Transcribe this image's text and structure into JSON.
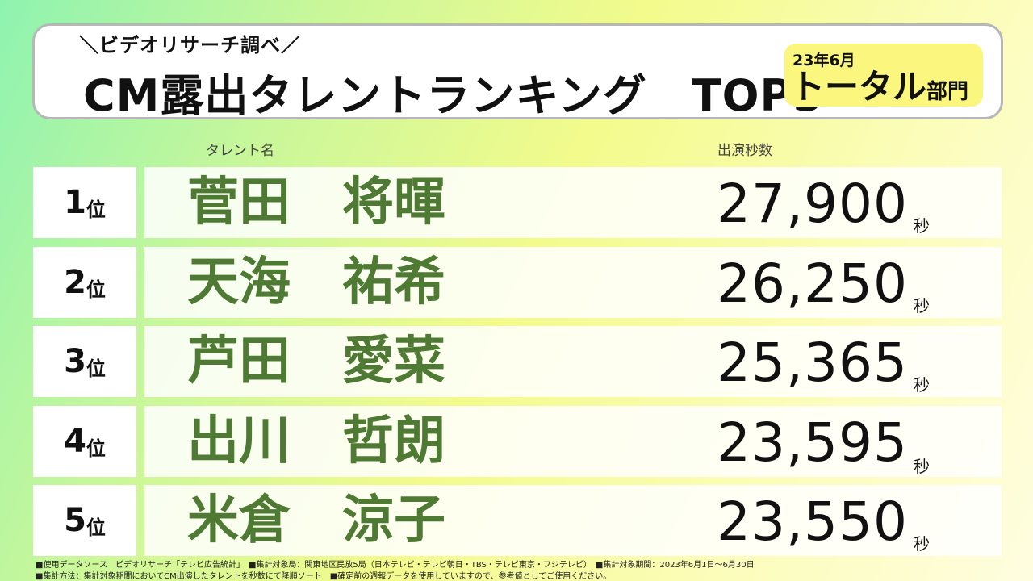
{
  "header": {
    "subtitle": "＼ビデオリサーチ調べ／",
    "title": "CM露出タレントランキング　TOP5",
    "period": "23年6月",
    "category_main": "トータル",
    "category_suffix": "部門"
  },
  "columns": {
    "name": "タレント名",
    "seconds": "出演秒数"
  },
  "rows": [
    {
      "rank": "1",
      "rank_unit": "位",
      "name": "菅田　将暉",
      "seconds": "27,900",
      "unit": "秒"
    },
    {
      "rank": "2",
      "rank_unit": "位",
      "name": "天海　祐希",
      "seconds": "26,250",
      "unit": "秒"
    },
    {
      "rank": "3",
      "rank_unit": "位",
      "name": "芦田　愛菜",
      "seconds": "25,365",
      "unit": "秒"
    },
    {
      "rank": "4",
      "rank_unit": "位",
      "name": "出川　哲朗",
      "seconds": "23,595",
      "unit": "秒"
    },
    {
      "rank": "5",
      "rank_unit": "位",
      "name": "米倉　涼子",
      "seconds": "23,550",
      "unit": "秒"
    }
  ],
  "footnotes": {
    "line1": "■使用データソース　ビデオリサーチ「テレビ広告統計」　■集計対象局：関東地区民放5局（日本テレビ・テレビ朝日・TBS・テレビ東京・フジテレビ）　■集計対象期間：2023年6月1日～6月30日",
    "line2": "■集計方法：集計対象期間においてCM出演したタレントを秒数にて降順ソート　■確定前の週報データを使用していますので、参考値としてご使用ください。"
  },
  "colors": {
    "name_green": "#4f7a34",
    "period_yellow": "#fbf67d"
  }
}
